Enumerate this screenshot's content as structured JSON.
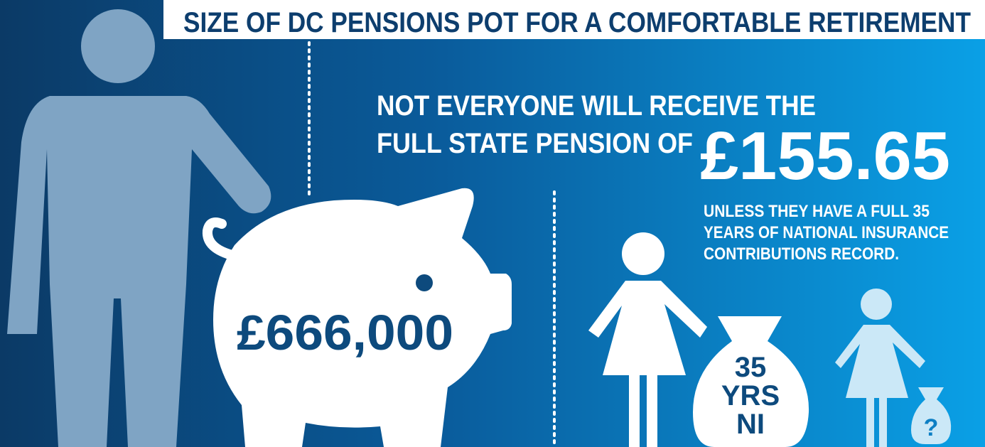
{
  "title": "SIZE OF DC PENSIONS POT FOR A COMFORTABLE RETIREMENT",
  "pot": {
    "amount": "£666,000"
  },
  "state_pension": {
    "headline": [
      "NOT EVERYONE WILL RECEIVE THE",
      "FULL STATE PENSION OF"
    ],
    "amount": "£155.65",
    "note": [
      "UNLESS THEY HAVE A FULL 35",
      "YEARS OF NATIONAL INSURANCE",
      "CONTRIBUTIONS RECORD."
    ]
  },
  "bag": [
    "35",
    "YRS",
    "NI"
  ],
  "small_bag": "?"
}
